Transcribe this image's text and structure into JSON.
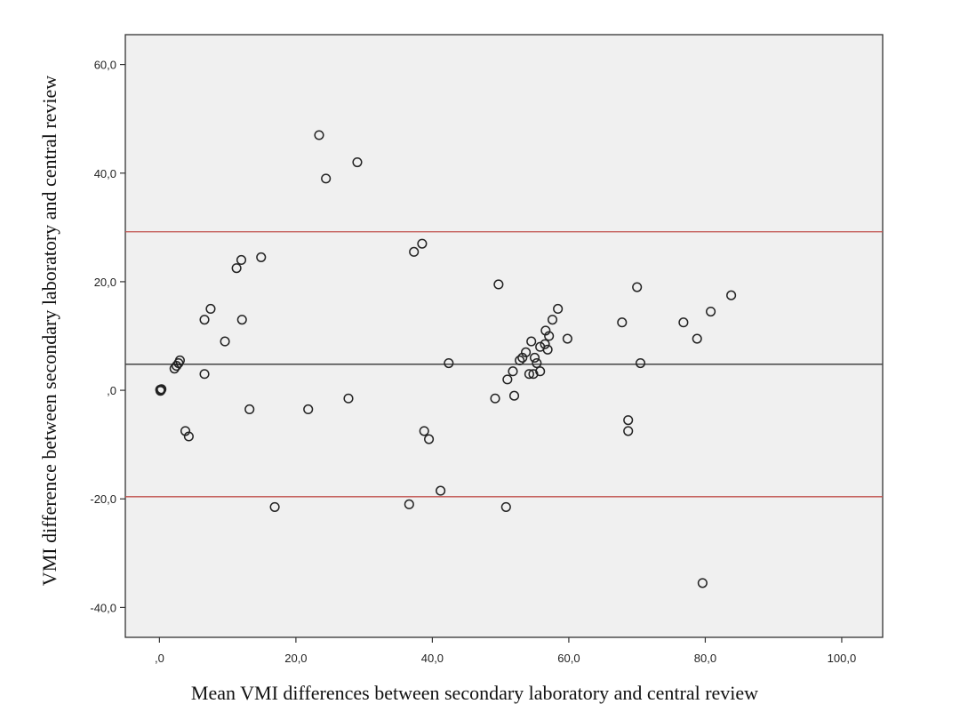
{
  "chart_data": {
    "type": "scatter",
    "xlabel": "Mean VMI differences between secondary laboratory and central review",
    "ylabel": "VMI difference between secondary laboratory and central review",
    "xlim": [
      -5,
      106
    ],
    "ylim": [
      -45.5,
      65.5
    ],
    "x_ticks": [
      0,
      20,
      40,
      60,
      80,
      100
    ],
    "x_tick_labels": [
      ",0",
      "20,0",
      "40,0",
      "60,0",
      "80,0",
      "100,0"
    ],
    "y_ticks": [
      -40,
      -20,
      0,
      20,
      40,
      60
    ],
    "y_tick_labels": [
      "-40,0",
      "-20,0",
      ",0",
      "20,0",
      "40,0",
      "60,0"
    ],
    "grid": false,
    "colors": {
      "plot_background": "#f0f0f0",
      "points": "#222222",
      "mean_line": "#444444",
      "limit_lines": "#c0504d"
    },
    "reference_lines": [
      {
        "kind": "mean",
        "y": 4.8
      },
      {
        "kind": "upper-limit",
        "y": 29.2
      },
      {
        "kind": "lower-limit",
        "y": -19.6
      }
    ],
    "points": [
      [
        0.1,
        0.1
      ],
      [
        0.2,
        0.0
      ],
      [
        0.3,
        0.2
      ],
      [
        0.15,
        -0.1
      ],
      [
        2.2,
        4.0
      ],
      [
        2.5,
        4.5
      ],
      [
        2.8,
        5.0
      ],
      [
        3.0,
        5.5
      ],
      [
        3.8,
        -7.5
      ],
      [
        4.3,
        -8.5
      ],
      [
        6.6,
        13.0
      ],
      [
        6.6,
        3.0
      ],
      [
        7.5,
        15.0
      ],
      [
        9.6,
        9.0
      ],
      [
        11.3,
        22.5
      ],
      [
        12.0,
        24.0
      ],
      [
        12.1,
        13.0
      ],
      [
        13.2,
        -3.5
      ],
      [
        14.9,
        24.5
      ],
      [
        16.9,
        -21.5
      ],
      [
        21.8,
        -3.5
      ],
      [
        23.4,
        47.0
      ],
      [
        24.4,
        39.0
      ],
      [
        27.7,
        -1.5
      ],
      [
        29.0,
        42.0
      ],
      [
        36.6,
        -21.0
      ],
      [
        37.3,
        25.5
      ],
      [
        38.5,
        27.0
      ],
      [
        38.8,
        -7.5
      ],
      [
        39.5,
        -9.0
      ],
      [
        41.2,
        -18.5
      ],
      [
        42.4,
        5.0
      ],
      [
        49.2,
        -1.5
      ],
      [
        49.7,
        19.5
      ],
      [
        50.8,
        -21.5
      ],
      [
        51.0,
        2.0
      ],
      [
        51.8,
        3.5
      ],
      [
        52.0,
        -1.0
      ],
      [
        52.8,
        5.5
      ],
      [
        53.2,
        6.0
      ],
      [
        53.7,
        7.0
      ],
      [
        54.2,
        3.0
      ],
      [
        54.5,
        9.0
      ],
      [
        54.8,
        3.0
      ],
      [
        55.0,
        6.0
      ],
      [
        55.3,
        5.0
      ],
      [
        55.8,
        3.5
      ],
      [
        55.8,
        8.0
      ],
      [
        56.5,
        8.5
      ],
      [
        56.6,
        11.0
      ],
      [
        56.9,
        7.5
      ],
      [
        57.1,
        10.0
      ],
      [
        57.6,
        13.0
      ],
      [
        58.4,
        15.0
      ],
      [
        59.8,
        9.5
      ],
      [
        67.8,
        12.5
      ],
      [
        68.7,
        -5.5
      ],
      [
        68.7,
        -7.5
      ],
      [
        70.0,
        19.0
      ],
      [
        70.5,
        5.0
      ],
      [
        76.8,
        12.5
      ],
      [
        78.8,
        9.5
      ],
      [
        79.6,
        -35.5
      ],
      [
        80.8,
        14.5
      ],
      [
        83.8,
        17.5
      ]
    ]
  }
}
